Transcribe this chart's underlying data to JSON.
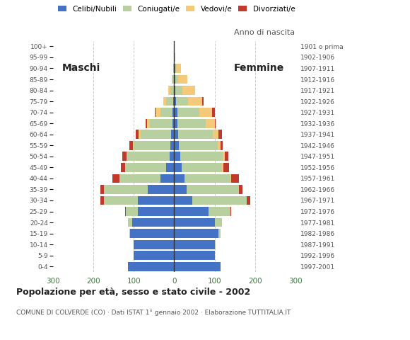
{
  "age_groups": [
    "0-4",
    "5-9",
    "10-14",
    "15-19",
    "20-24",
    "25-29",
    "30-34",
    "35-39",
    "40-44",
    "45-49",
    "50-54",
    "55-59",
    "60-64",
    "65-69",
    "70-74",
    "75-79",
    "80-84",
    "85-89",
    "90-94",
    "95-99",
    "100+"
  ],
  "birth_years": [
    "1997-2001",
    "1992-1996",
    "1987-1991",
    "1982-1986",
    "1977-1981",
    "1972-1976",
    "1967-1971",
    "1962-1966",
    "1957-1961",
    "1952-1956",
    "1947-1951",
    "1942-1946",
    "1937-1941",
    "1932-1936",
    "1927-1931",
    "1922-1926",
    "1917-1921",
    "1912-1916",
    "1907-1911",
    "1902-1906",
    "1901 o prima"
  ],
  "males": {
    "celibe": [
      115,
      100,
      100,
      110,
      105,
      90,
      90,
      65,
      35,
      20,
      12,
      10,
      8,
      5,
      4,
      2,
      0,
      0,
      0,
      0,
      0
    ],
    "coniugato": [
      0,
      0,
      0,
      2,
      10,
      30,
      85,
      110,
      100,
      100,
      105,
      90,
      75,
      55,
      30,
      18,
      10,
      5,
      2,
      0,
      0
    ],
    "vedovo": [
      0,
      0,
      0,
      0,
      0,
      0,
      0,
      0,
      1,
      1,
      2,
      3,
      5,
      8,
      12,
      8,
      5,
      2,
      0,
      0,
      0
    ],
    "divorziato": [
      0,
      0,
      0,
      0,
      0,
      2,
      8,
      8,
      18,
      12,
      10,
      8,
      8,
      3,
      2,
      0,
      0,
      0,
      0,
      0,
      0
    ]
  },
  "females": {
    "nubile": [
      115,
      100,
      100,
      110,
      100,
      85,
      45,
      30,
      25,
      18,
      15,
      12,
      10,
      8,
      8,
      5,
      3,
      2,
      2,
      0,
      0
    ],
    "coniugata": [
      0,
      0,
      2,
      5,
      18,
      55,
      135,
      130,
      115,
      100,
      105,
      95,
      85,
      70,
      55,
      30,
      18,
      8,
      2,
      0,
      0
    ],
    "vedova": [
      0,
      0,
      0,
      0,
      0,
      0,
      0,
      1,
      2,
      3,
      5,
      8,
      15,
      22,
      30,
      35,
      30,
      22,
      12,
      3,
      0
    ],
    "divorziata": [
      0,
      0,
      0,
      0,
      0,
      2,
      8,
      8,
      18,
      15,
      10,
      5,
      8,
      3,
      8,
      2,
      0,
      0,
      0,
      0,
      0
    ]
  },
  "colors": {
    "single": "#4472c4",
    "married": "#b8cfa0",
    "widowed": "#f5c97a",
    "divorced": "#c0392b"
  },
  "xlim": 300,
  "title": "Popolazione per età, sesso e stato civile - 2002",
  "subtitle": "COMUNE DI COLVERDE (CO) · Dati ISTAT 1° gennaio 2002 · Elaborazione TUTTITALIA.IT",
  "bg_color": "#ffffff"
}
